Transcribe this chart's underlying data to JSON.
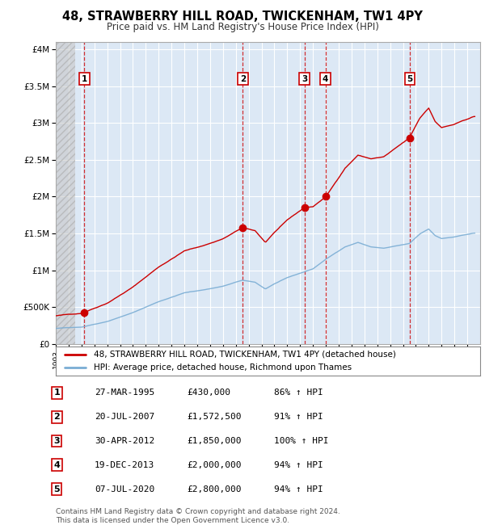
{
  "title": "48, STRAWBERRY HILL ROAD, TWICKENHAM, TW1 4PY",
  "subtitle": "Price paid vs. HM Land Registry's House Price Index (HPI)",
  "y_ticks": [
    0,
    500000,
    1000000,
    1500000,
    2000000,
    2500000,
    3000000,
    3500000,
    4000000
  ],
  "y_tick_labels": [
    "£0",
    "£500K",
    "£1M",
    "£1.5M",
    "£2M",
    "£2.5M",
    "£3M",
    "£3.5M",
    "£4M"
  ],
  "ylim": [
    0,
    4100000
  ],
  "x_start_year": 1993,
  "x_end_year": 2026,
  "sale_color": "#cc0000",
  "hpi_color": "#7aadd4",
  "background_color": "#dce8f5",
  "grid_color": "#ffffff",
  "sales": [
    {
      "year": 1995.23,
      "price": 430000,
      "label": "1"
    },
    {
      "year": 2007.55,
      "price": 1572500,
      "label": "2"
    },
    {
      "year": 2012.33,
      "price": 1850000,
      "label": "3"
    },
    {
      "year": 2013.97,
      "price": 2000000,
      "label": "4"
    },
    {
      "year": 2020.52,
      "price": 2800000,
      "label": "5"
    }
  ],
  "legend_line1": "48, STRAWBERRY HILL ROAD, TWICKENHAM, TW1 4PY (detached house)",
  "legend_line2": "HPI: Average price, detached house, Richmond upon Thames",
  "table": [
    {
      "num": "1",
      "date": "27-MAR-1995",
      "price": "£430,000",
      "hpi": "86% ↑ HPI"
    },
    {
      "num": "2",
      "date": "20-JUL-2007",
      "price": "£1,572,500",
      "hpi": "91% ↑ HPI"
    },
    {
      "num": "3",
      "date": "30-APR-2012",
      "price": "£1,850,000",
      "hpi": "100% ↑ HPI"
    },
    {
      "num": "4",
      "date": "19-DEC-2013",
      "price": "£2,000,000",
      "hpi": "94% ↑ HPI"
    },
    {
      "num": "5",
      "date": "07-JUL-2020",
      "price": "£2,800,000",
      "hpi": "94% ↑ HPI"
    }
  ],
  "footnote": "Contains HM Land Registry data © Crown copyright and database right 2024.\nThis data is licensed under the Open Government Licence v3.0."
}
